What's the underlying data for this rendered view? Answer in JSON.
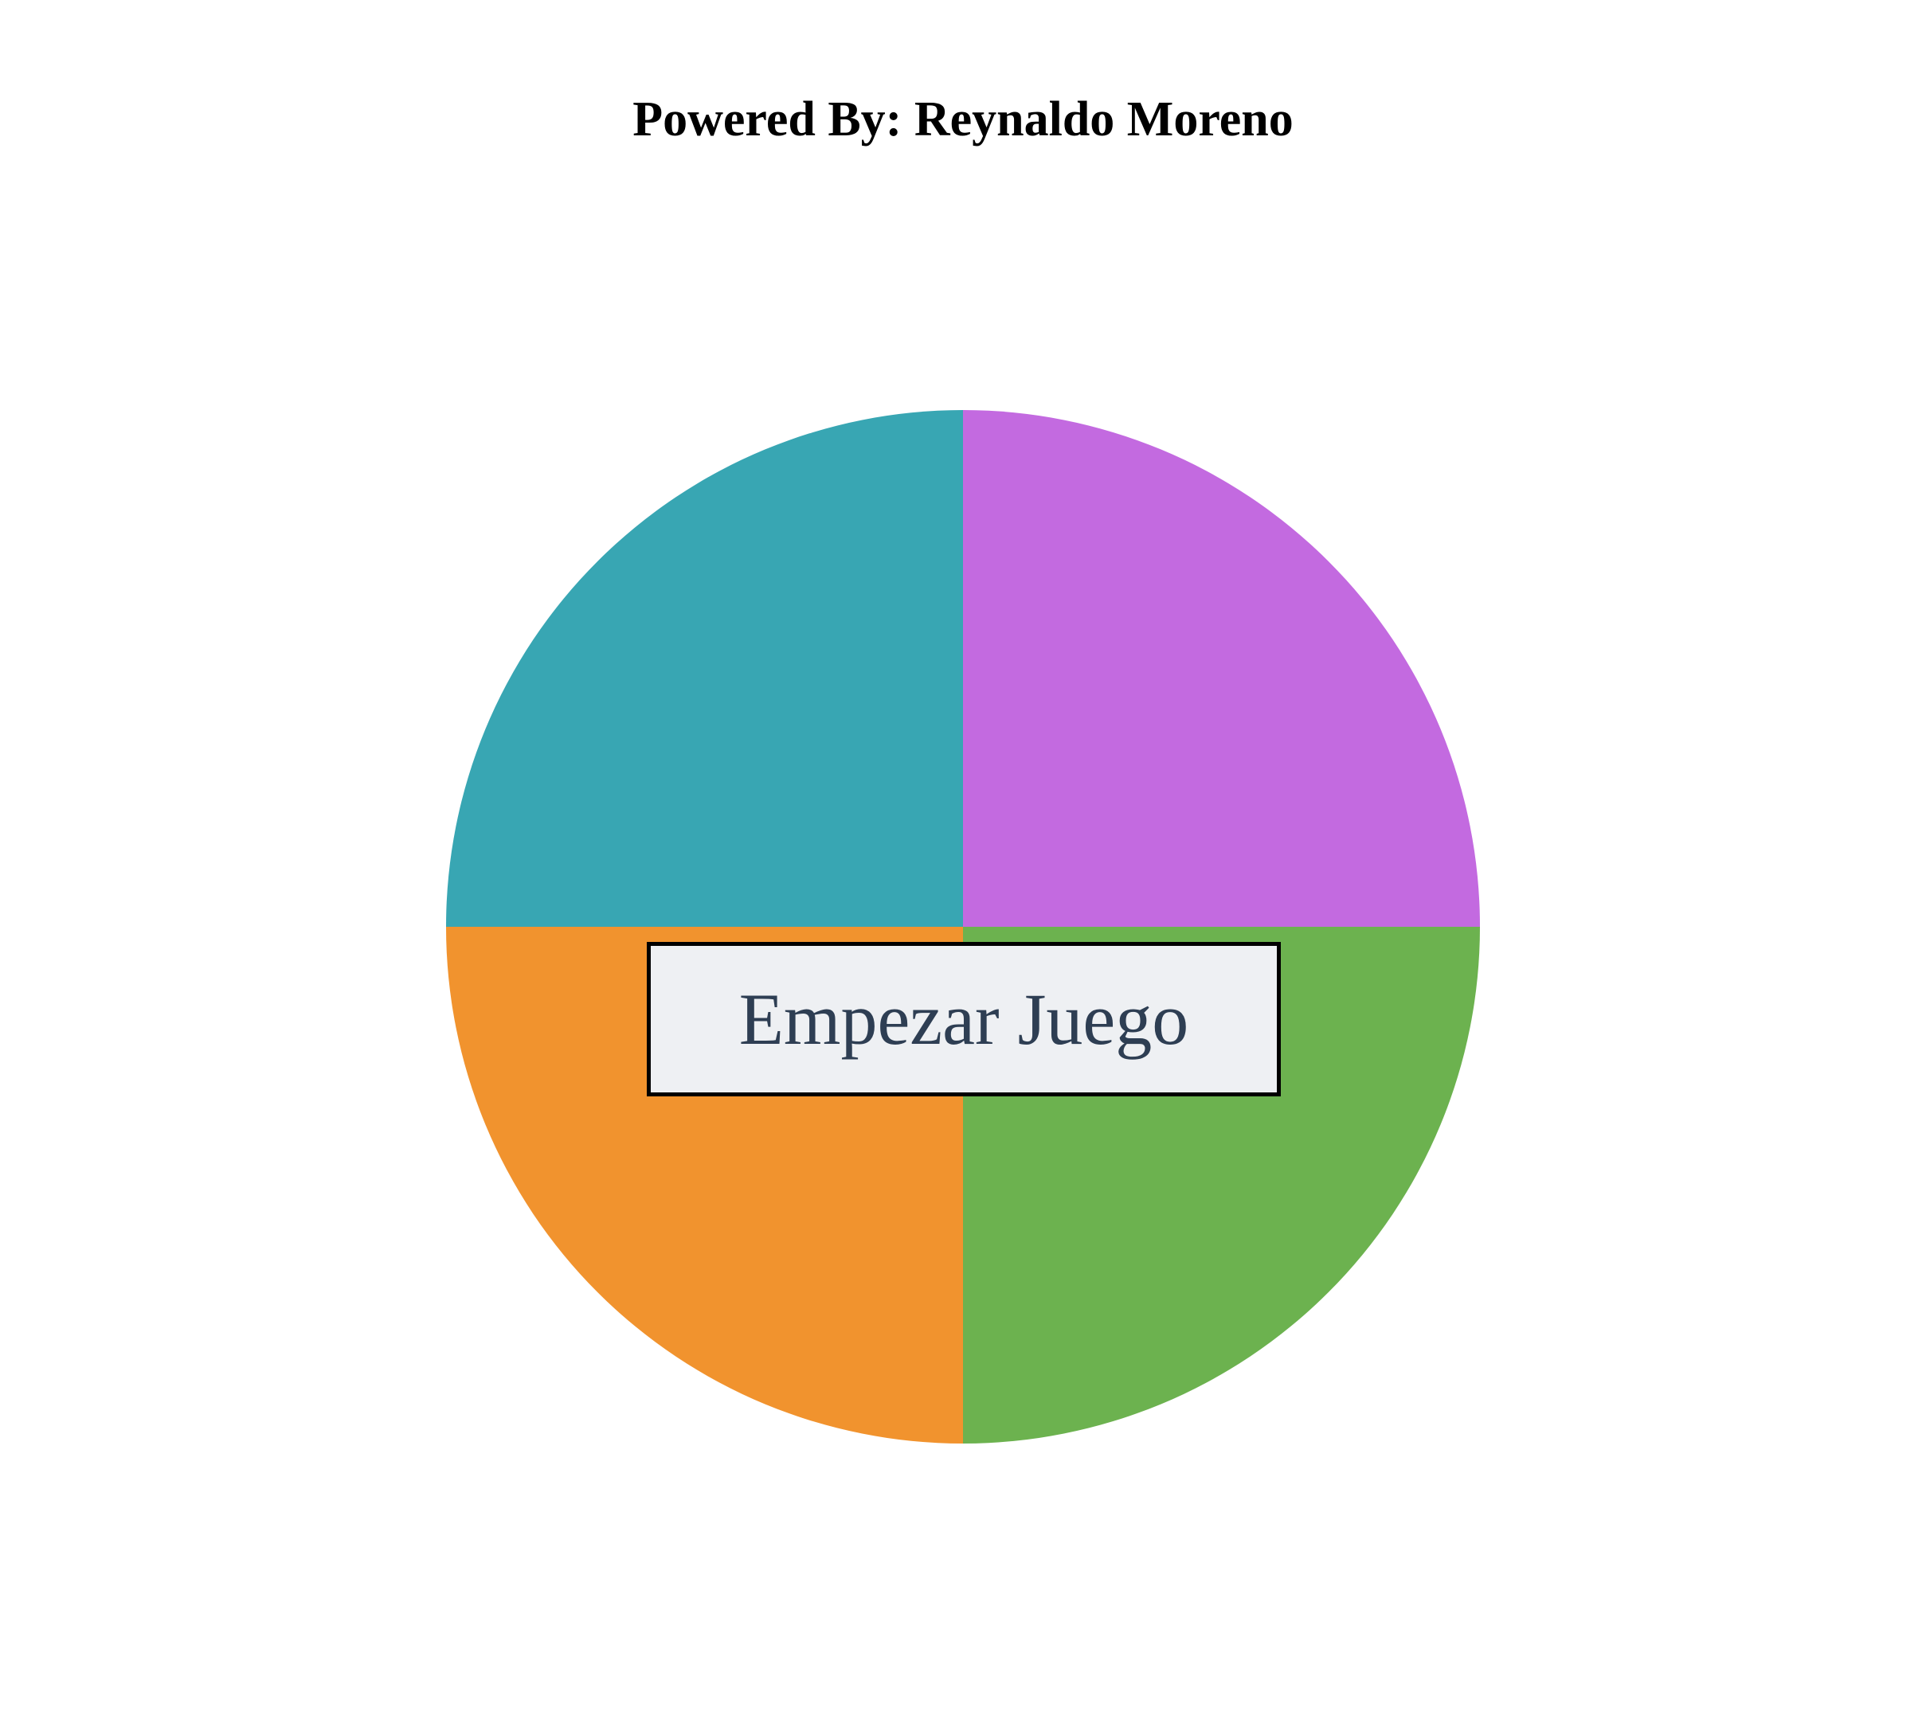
{
  "header": {
    "credit_text": "Powered By: Reynaldo Moreno"
  },
  "game": {
    "start_button_label": "Empezar Juego",
    "quadrants": [
      {
        "position": "top-left",
        "color": "#38a6b3"
      },
      {
        "position": "top-right",
        "color": "#c36ae0"
      },
      {
        "position": "bottom-left",
        "color": "#f1932e"
      },
      {
        "position": "bottom-right",
        "color": "#6cb24f"
      }
    ]
  }
}
